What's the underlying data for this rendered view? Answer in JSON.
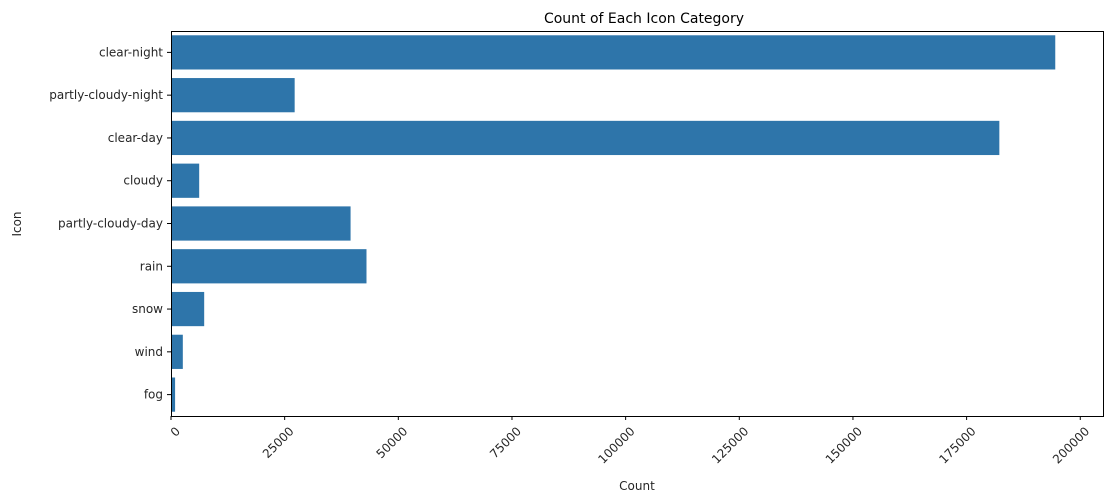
{
  "chart_data": {
    "type": "bar",
    "orientation": "horizontal",
    "title": "Count of Each Icon Category",
    "xlabel": "Count",
    "ylabel": "Icon",
    "categories": [
      "clear-night",
      "partly-cloudy-night",
      "clear-day",
      "cloudy",
      "partly-cloudy-day",
      "rain",
      "snow",
      "wind",
      "fog"
    ],
    "values": [
      194500,
      27200,
      182200,
      6200,
      39500,
      43000,
      7300,
      2600,
      900
    ],
    "xlim": [
      0,
      205000
    ],
    "xticks": [
      0,
      25000,
      50000,
      75000,
      100000,
      125000,
      150000,
      175000,
      200000
    ],
    "xtick_rotation": 45,
    "grid": false,
    "legend": "none",
    "bar_color": "#2e75aa"
  }
}
